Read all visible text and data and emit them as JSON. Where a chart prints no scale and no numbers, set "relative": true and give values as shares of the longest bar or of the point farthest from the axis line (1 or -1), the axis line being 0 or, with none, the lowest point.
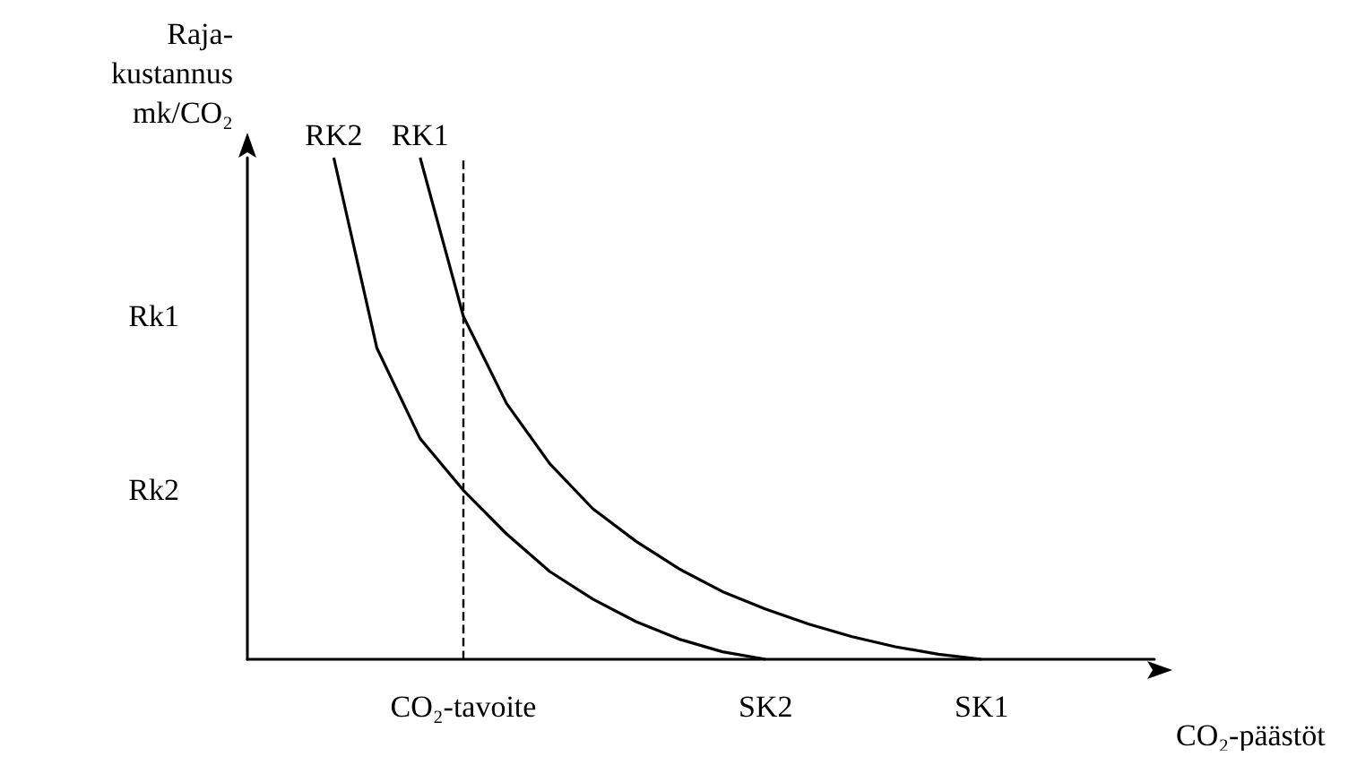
{
  "chart_data": {
    "type": "line",
    "relative": true,
    "xlabel": "CO₂-päästöt",
    "ylabel": "Raja-\nkustannus\nmk/CO₂",
    "categories": [
      null,
      null,
      null,
      null,
      null,
      "CO₂-tavoite",
      null,
      null,
      null,
      null,
      null,
      null,
      "SK2",
      null,
      null,
      null,
      null,
      "SK1",
      null,
      null,
      null,
      null
    ],
    "annotations": [
      "Rk2",
      "Rk1"
    ],
    "series": [
      {
        "name": "RK2",
        "color": "#000000",
        "values": [
          null,
          null,
          1,
          0.62,
          0.44,
          0.337,
          0.25,
          0.175,
          0.12,
          0.075,
          0.04,
          0.015,
          0,
          null,
          null,
          null,
          null,
          null,
          null,
          null,
          null,
          null
        ]
      },
      {
        "name": "RK1",
        "color": "#000000",
        "values": [
          null,
          null,
          null,
          null,
          1,
          0.684,
          0.51,
          0.39,
          0.3,
          0.235,
          0.18,
          0.135,
          0.1,
          0.07,
          0.045,
          0.025,
          0.01,
          0,
          null,
          null,
          null,
          null
        ]
      }
    ],
    "ref_lines": [
      {
        "axis": "x",
        "value": "CO₂-tavoite",
        "color": "#000000",
        "line_style": "dashed"
      }
    ],
    "grid": false,
    "marker": "none",
    "line_style": "solid"
  }
}
